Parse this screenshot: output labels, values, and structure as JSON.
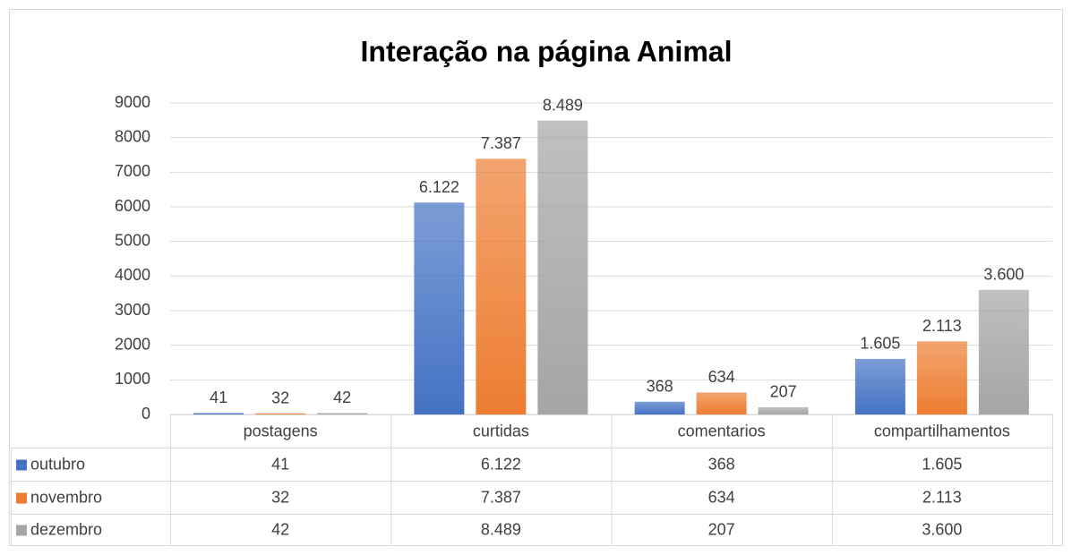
{
  "chart_data": {
    "type": "bar",
    "title": "Interação na página Animal",
    "categories": [
      "postagens",
      "curtidas",
      "comentarios",
      "compartilhamentos"
    ],
    "series": [
      {
        "name": "outubro",
        "color": "#4472c4",
        "values": [
          41,
          6122,
          368,
          1605
        ],
        "value_labels": [
          "41",
          "6.122",
          "368",
          "1.605"
        ]
      },
      {
        "name": "novembro",
        "color": "#ed7d31",
        "values": [
          32,
          7387,
          634,
          2113
        ],
        "value_labels": [
          "32",
          "7.387",
          "634",
          "2.113"
        ]
      },
      {
        "name": "dezembro",
        "color": "#a5a5a5",
        "values": [
          42,
          8489,
          207,
          3600
        ],
        "value_labels": [
          "42",
          "8.489",
          "207",
          "3.600"
        ]
      }
    ],
    "ylim": [
      0,
      9000
    ],
    "yticks": [
      0,
      1000,
      2000,
      3000,
      4000,
      5000,
      6000,
      7000,
      8000,
      9000
    ],
    "grid": true,
    "data_table": true
  }
}
